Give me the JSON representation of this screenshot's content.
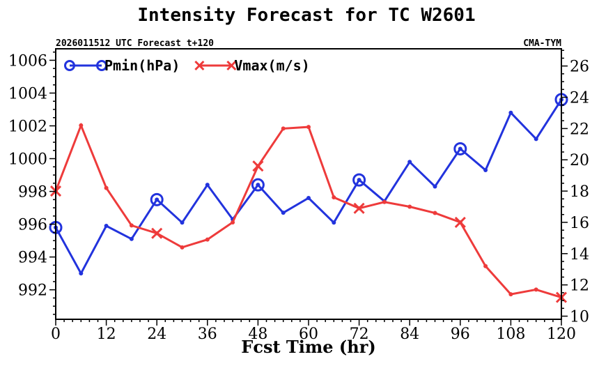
{
  "chart_data": {
    "type": "line",
    "title": "Intensity Forecast for TC W2601",
    "subtitle_left": "2026011512 UTC Forecast t+120",
    "subtitle_right": "CMA-TYM",
    "xlabel": "Fcst Time (hr)",
    "x": [
      0,
      6,
      12,
      18,
      24,
      30,
      36,
      42,
      48,
      54,
      60,
      66,
      72,
      78,
      84,
      90,
      96,
      102,
      108,
      114,
      120
    ],
    "xlim": [
      0,
      120
    ],
    "xticks": [
      0,
      12,
      24,
      36,
      48,
      60,
      72,
      84,
      96,
      108,
      120
    ],
    "left_axis": {
      "ylim": [
        990.2,
        1006.7
      ],
      "ticks": [
        992,
        994,
        996,
        998,
        1000,
        1002,
        1004,
        1006
      ]
    },
    "right_axis": {
      "ylim": [
        9.8,
        27.1
      ],
      "ticks": [
        10,
        12,
        14,
        16,
        18,
        20,
        22,
        24,
        26
      ]
    },
    "series": [
      {
        "name": "Pmin(hPa)",
        "axis": "left",
        "color": "#2233dd",
        "marker": "circle",
        "marker_every": 4,
        "values": [
          995.8,
          993.0,
          995.9,
          995.1,
          997.5,
          996.1,
          998.4,
          996.3,
          998.4,
          996.7,
          997.6,
          996.1,
          998.7,
          997.4,
          999.8,
          998.3,
          1000.6,
          999.3,
          1002.8,
          1001.2,
          1003.6
        ]
      },
      {
        "name": "Vmax(m/s)",
        "axis": "right",
        "color": "#ee3b3b",
        "marker": "x",
        "marker_every": 4,
        "values": [
          18.0,
          22.2,
          18.2,
          15.8,
          15.3,
          14.4,
          14.9,
          16.0,
          19.6,
          22.0,
          22.1,
          17.6,
          16.9,
          17.3,
          17.0,
          16.6,
          16.0,
          13.2,
          11.4,
          11.7,
          11.2
        ]
      }
    ]
  }
}
